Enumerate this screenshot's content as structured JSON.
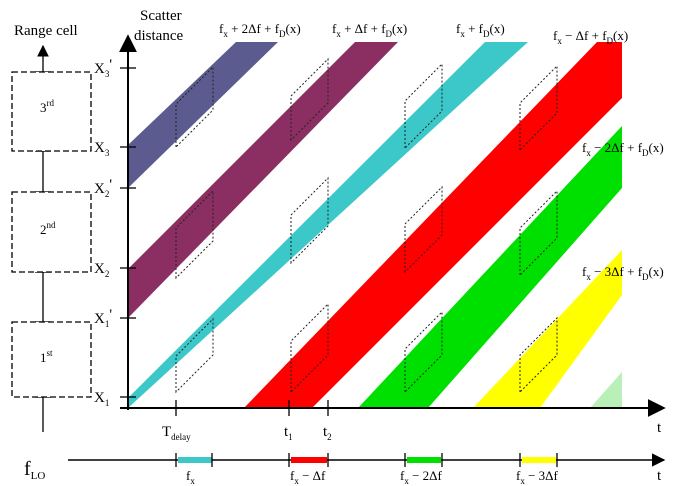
{
  "axes": {
    "left_axis_title": "Range cell",
    "y_axis_title_line1": "Scatter",
    "y_axis_title_line2": "distance",
    "x_axis_label": "t",
    "bottom_axis_label": "t"
  },
  "range_cells": [
    "1st",
    "2nd",
    "3rd"
  ],
  "range_cell_parts": [
    {
      "num": "1",
      "sup": "st"
    },
    {
      "num": "2",
      "sup": "nd"
    },
    {
      "num": "3",
      "sup": "rd"
    }
  ],
  "y_ticks": [
    {
      "main": "X",
      "sub": "1",
      "prime": ""
    },
    {
      "main": "X",
      "sub": "1",
      "prime": "'"
    },
    {
      "main": "X",
      "sub": "2",
      "prime": ""
    },
    {
      "main": "X",
      "sub": "2",
      "prime": "'"
    },
    {
      "main": "X",
      "sub": "3",
      "prime": ""
    },
    {
      "main": "X",
      "sub": "3",
      "prime": "'"
    }
  ],
  "x_ticks": [
    {
      "main": "T",
      "sub": "delay"
    },
    {
      "main": "t",
      "sub": "1"
    },
    {
      "main": "t",
      "sub": "2"
    }
  ],
  "band_labels": [
    {
      "text": "fx + 2Δf + fD(x)",
      "color": "#5b5b8f"
    },
    {
      "text": "fx + Δf + fD(x)",
      "color": "#8b2f63"
    },
    {
      "text": "fx + fD(x)",
      "color": "#3cc8c8"
    },
    {
      "text": "fx − Δf + fD(x)",
      "color": "#ff0000"
    },
    {
      "text": "fx − 2Δf + fD(x)",
      "color": "#00e000"
    },
    {
      "text": "fx − 3Δf + fD(x)",
      "color": "#ffff00"
    }
  ],
  "lo_axis": {
    "label_main": "f",
    "label_sub": "LO",
    "segments": [
      {
        "label": "fx",
        "color": "#3cc8c8"
      },
      {
        "label": "fx − Δf",
        "color": "#ff0000"
      },
      {
        "label": "fx − 2Δf",
        "color": "#00e000"
      },
      {
        "label": "fx − 3Δf",
        "color": "#ffff00"
      }
    ]
  },
  "colors": {
    "navy_band": "#5b5b8f",
    "purple_band": "#8b2f63",
    "cyan_band": "#3cc8c8",
    "red_band": "#ff0000",
    "green_band": "#00e000",
    "yellow_band": "#ffff00",
    "faint_green_band": "#b8f0b8"
  }
}
